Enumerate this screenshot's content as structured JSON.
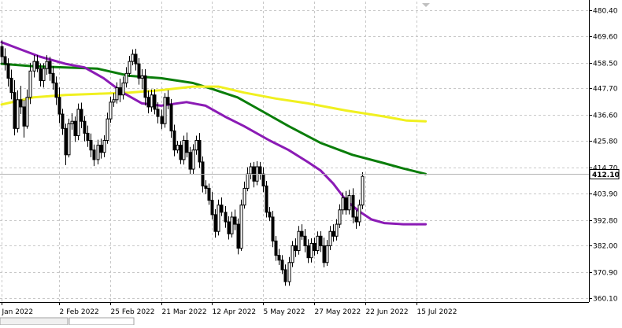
{
  "window": {
    "bottom_tabs": [
      "",
      ""
    ]
  },
  "chart_data": {
    "type": "candlestick",
    "price_axis": {
      "ticks": [
        360.1,
        370.9,
        382.0,
        392.8,
        403.9,
        414.7,
        425.8,
        436.6,
        447.7,
        458.5,
        469.6,
        480.4
      ],
      "tick_labels": [
        "360.10",
        "370.90",
        "382.00",
        "392.80",
        "403.90",
        "414.70",
        "425.80",
        "436.60",
        "447.70",
        "458.50",
        "469.60",
        "480.40"
      ],
      "ylim": [
        358.5,
        484.0
      ],
      "current_price": 412.1,
      "current_price_label": "412.10"
    },
    "date_axis": {
      "labels": [
        "Jan 2022",
        "2 Feb 2022",
        "25 Feb 2022",
        "21 Mar 2022",
        "12 Apr 2022",
        "5 May 2022",
        "27 May 2022",
        "22 Jun 2022",
        "15 Jul 2022"
      ],
      "label_bar_index": [
        0,
        18,
        34,
        50,
        66,
        82,
        98,
        114,
        130
      ]
    },
    "grid": true,
    "colors": {
      "background": "#ffffff",
      "grid": "#c8c8c8",
      "candle": "#000000",
      "ma_green": "#0a7d0a",
      "ma_yellow": "#f0f020",
      "ma_purple": "#8b1bb5",
      "current_price_line": "#b4b4b4"
    },
    "candles": [
      [
        465.2,
        467.8,
        458.0,
        461.0
      ],
      [
        461.0,
        464.5,
        455.2,
        458.0
      ],
      [
        458.0,
        460.3,
        448.5,
        452.0
      ],
      [
        452.0,
        455.6,
        443.2,
        446.0
      ],
      [
        446.0,
        451.2,
        428.1,
        431.0
      ],
      [
        431.0,
        446.9,
        429.3,
        443.0
      ],
      [
        443.0,
        448.8,
        437.0,
        440.0
      ],
      [
        440.0,
        442.9,
        427.2,
        432.0
      ],
      [
        432.0,
        447.3,
        430.9,
        444.0
      ],
      [
        444.0,
        458.4,
        441.2,
        455.0
      ],
      [
        455.0,
        461.6,
        452.3,
        459.0
      ],
      [
        459.0,
        461.6,
        454.5,
        456.0
      ],
      [
        456.0,
        458.2,
        448.5,
        451.0
      ],
      [
        451.0,
        458.2,
        448.1,
        456.0
      ],
      [
        456.0,
        461.6,
        453.4,
        459.0
      ],
      [
        459.0,
        460.9,
        450.9,
        454.0
      ],
      [
        454.0,
        457.0,
        447.2,
        450.0
      ],
      [
        450.0,
        452.7,
        440.8,
        444.0
      ],
      [
        444.0,
        448.1,
        433.2,
        437.0
      ],
      [
        437.0,
        439.2,
        428.3,
        431.0
      ],
      [
        431.0,
        433.0,
        415.7,
        420.0
      ],
      [
        420.0,
        435.1,
        418.9,
        433.0
      ],
      [
        433.0,
        437.4,
        430.5,
        434.0
      ],
      [
        434.0,
        436.0,
        425.4,
        428.0
      ],
      [
        428.0,
        441.4,
        426.1,
        439.0
      ],
      [
        439.0,
        441.8,
        431.1,
        434.0
      ],
      [
        434.0,
        436.2,
        425.6,
        429.0
      ],
      [
        429.0,
        432.2,
        423.3,
        426.0
      ],
      [
        426.0,
        428.9,
        419.0,
        422.0
      ],
      [
        422.0,
        424.3,
        415.3,
        418.0
      ],
      [
        418.0,
        426.3,
        416.0,
        424.0
      ],
      [
        424.0,
        426.7,
        418.4,
        421.0
      ],
      [
        421.0,
        428.2,
        419.0,
        426.0
      ],
      [
        426.0,
        437.6,
        424.6,
        435.0
      ],
      [
        435.0,
        444.2,
        433.4,
        442.0
      ],
      [
        442.0,
        445.8,
        440.0,
        443.0
      ],
      [
        443.0,
        450.3,
        441.4,
        448.0
      ],
      [
        448.0,
        451.8,
        442.0,
        445.0
      ],
      [
        445.0,
        452.7,
        443.1,
        450.0
      ],
      [
        450.0,
        456.6,
        448.1,
        454.0
      ],
      [
        454.0,
        461.3,
        452.6,
        459.0
      ],
      [
        459.0,
        464.0,
        457.4,
        462.0
      ],
      [
        462.0,
        464.3,
        455.2,
        458.0
      ],
      [
        458.0,
        460.4,
        449.3,
        452.0
      ],
      [
        452.0,
        455.8,
        447.4,
        453.0
      ],
      [
        453.0,
        455.8,
        440.6,
        444.0
      ],
      [
        444.0,
        446.8,
        437.3,
        440.0
      ],
      [
        440.0,
        447.3,
        438.0,
        445.0
      ],
      [
        445.0,
        447.4,
        436.9,
        439.0
      ],
      [
        439.0,
        441.9,
        433.1,
        436.0
      ],
      [
        436.0,
        438.9,
        430.7,
        433.0
      ],
      [
        433.0,
        445.8,
        431.3,
        444.0
      ],
      [
        444.0,
        447.0,
        439.0,
        441.0
      ],
      [
        441.0,
        443.3,
        427.1,
        430.0
      ],
      [
        430.0,
        432.6,
        419.4,
        422.0
      ],
      [
        422.0,
        425.8,
        420.6,
        424.0
      ],
      [
        424.0,
        425.7,
        416.1,
        418.0
      ],
      [
        418.0,
        428.0,
        415.9,
        426.0
      ],
      [
        426.0,
        429.3,
        418.9,
        421.0
      ],
      [
        421.0,
        423.3,
        411.8,
        414.0
      ],
      [
        414.0,
        424.4,
        412.0,
        422.0
      ],
      [
        422.0,
        428.0,
        420.0,
        426.0
      ],
      [
        426.0,
        429.1,
        414.5,
        417.0
      ],
      [
        417.0,
        419.3,
        404.3,
        407.0
      ],
      [
        407.0,
        409.4,
        403.6,
        406.0
      ],
      [
        406.0,
        408.0,
        399.1,
        401.0
      ],
      [
        401.0,
        404.5,
        393.0,
        395.0
      ],
      [
        395.0,
        397.3,
        385.4,
        388.0
      ],
      [
        388.0,
        401.3,
        386.3,
        399.0
      ],
      [
        399.0,
        402.2,
        394.4,
        396.0
      ],
      [
        396.0,
        398.6,
        389.5,
        392.0
      ],
      [
        392.0,
        394.3,
        384.6,
        387.0
      ],
      [
        387.0,
        396.2,
        385.5,
        394.0
      ],
      [
        394.0,
        397.1,
        388.5,
        391.0
      ],
      [
        391.0,
        393.4,
        378.4,
        381.0
      ],
      [
        381.0,
        401.3,
        379.9,
        399.0
      ],
      [
        399.0,
        408.8,
        397.5,
        406.0
      ],
      [
        406.0,
        414.8,
        404.8,
        412.0
      ],
      [
        412.0,
        416.7,
        409.8,
        415.0
      ],
      [
        415.0,
        417.0,
        406.4,
        409.0
      ],
      [
        409.0,
        417.3,
        407.3,
        415.0
      ],
      [
        415.0,
        417.0,
        409.6,
        412.0
      ],
      [
        412.0,
        414.8,
        404.4,
        407.0
      ],
      [
        407.0,
        409.1,
        393.8,
        396.0
      ],
      [
        396.0,
        398.2,
        392.3,
        394.0
      ],
      [
        394.0,
        396.6,
        381.4,
        384.0
      ],
      [
        384.0,
        386.1,
        375.7,
        378.0
      ],
      [
        378.0,
        380.7,
        374.0,
        376.0
      ],
      [
        376.0,
        378.1,
        370.2,
        372.0
      ],
      [
        372.0,
        374.2,
        365.3,
        367.0
      ],
      [
        367.0,
        377.3,
        365.3,
        375.0
      ],
      [
        375.0,
        384.0,
        373.1,
        382.0
      ],
      [
        382.0,
        385.1,
        377.3,
        380.0
      ],
      [
        380.0,
        390.3,
        378.3,
        388.0
      ],
      [
        388.0,
        391.0,
        384.5,
        386.0
      ],
      [
        386.0,
        389.0,
        379.3,
        382.0
      ],
      [
        382.0,
        384.7,
        374.8,
        377.0
      ],
      [
        377.0,
        385.1,
        375.0,
        383.0
      ],
      [
        383.0,
        385.4,
        377.9,
        380.0
      ],
      [
        380.0,
        388.0,
        378.5,
        386.0
      ],
      [
        386.0,
        388.1,
        379.4,
        382.0
      ],
      [
        382.0,
        385.4,
        373.0,
        375.0
      ],
      [
        375.0,
        384.4,
        373.6,
        382.0
      ],
      [
        382.0,
        390.3,
        380.2,
        388.0
      ],
      [
        388.0,
        391.0,
        383.7,
        386.0
      ],
      [
        386.0,
        393.1,
        384.2,
        391.0
      ],
      [
        391.0,
        399.3,
        389.4,
        397.0
      ],
      [
        397.0,
        404.3,
        395.1,
        402.0
      ],
      [
        402.0,
        404.9,
        395.0,
        397.0
      ],
      [
        397.0,
        405.4,
        395.1,
        403.0
      ],
      [
        403.0,
        406.0,
        391.4,
        394.0
      ],
      [
        394.0,
        396.8,
        389.1,
        392.0
      ],
      [
        392.0,
        401.3,
        390.3,
        399.0
      ],
      [
        399.0,
        412.7,
        397.3,
        411.0
      ]
    ],
    "moving_averages": [
      {
        "color": "#0a7d0a",
        "values": [
          [
            0,
            458.0
          ],
          [
            10,
            457.0
          ],
          [
            20,
            456.5
          ],
          [
            30,
            456.0
          ],
          [
            40,
            453.0
          ],
          [
            50,
            452.0
          ],
          [
            60,
            450.0
          ],
          [
            66,
            447.5
          ],
          [
            74,
            444.0
          ],
          [
            82,
            438.0
          ],
          [
            90,
            432.0
          ],
          [
            100,
            425.0
          ],
          [
            110,
            420.0
          ],
          [
            120,
            416.5
          ],
          [
            126,
            414.3
          ],
          [
            133,
            412.0
          ]
        ]
      },
      {
        "color": "#f0f020",
        "values": [
          [
            0,
            441.0
          ],
          [
            10,
            444.0
          ],
          [
            20,
            445.0
          ],
          [
            30,
            445.5
          ],
          [
            40,
            446.0
          ],
          [
            50,
            447.0
          ],
          [
            60,
            448.5
          ],
          [
            68,
            448.5
          ],
          [
            76,
            446.0
          ],
          [
            86,
            443.5
          ],
          [
            96,
            441.5
          ],
          [
            108,
            438.5
          ],
          [
            120,
            436.0
          ],
          [
            127,
            434.3
          ],
          [
            133,
            434.0
          ]
        ]
      },
      {
        "color": "#8b1bb5",
        "values": [
          [
            0,
            467.0
          ],
          [
            6,
            464.0
          ],
          [
            12,
            461.0
          ],
          [
            20,
            458.0
          ],
          [
            26,
            456.5
          ],
          [
            32,
            452.0
          ],
          [
            38,
            446.0
          ],
          [
            44,
            441.5
          ],
          [
            50,
            440.5
          ],
          [
            58,
            442.0
          ],
          [
            64,
            440.5
          ],
          [
            70,
            436.0
          ],
          [
            76,
            432.0
          ],
          [
            84,
            426.0
          ],
          [
            90,
            422.0
          ],
          [
            96,
            417.0
          ],
          [
            100,
            413.5
          ],
          [
            104,
            408.0
          ],
          [
            108,
            401.0
          ],
          [
            112,
            396.5
          ],
          [
            116,
            393.0
          ],
          [
            120,
            391.5
          ],
          [
            126,
            391.0
          ],
          [
            133,
            391.0
          ]
        ]
      }
    ]
  }
}
